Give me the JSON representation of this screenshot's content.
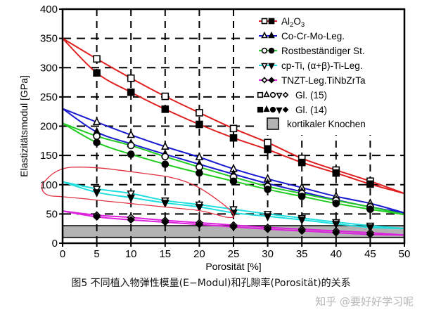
{
  "chart_data": {
    "type": "line",
    "xlabel": "Porosität [%]",
    "ylabel": "Elastizitätsmodul [GPa]",
    "xlim": [
      0,
      50
    ],
    "ylim": [
      0,
      400
    ],
    "xticks": [
      0,
      5,
      10,
      15,
      20,
      25,
      30,
      35,
      40,
      45,
      50
    ],
    "yticks": [
      0,
      50,
      100,
      150,
      200,
      250,
      300,
      350,
      400
    ],
    "grid": "dashed",
    "legend_position": "top-right",
    "x_markers": [
      5,
      10,
      15,
      20,
      25,
      30,
      35,
      40,
      45
    ],
    "series": [
      {
        "name": "Al2O3",
        "color": "#e02020",
        "E0": 350,
        "E50": 85,
        "gl15": [
          315,
          282,
          251,
          223,
          196,
          172,
          145,
          125,
          106
        ],
        "gl14": [
          291,
          258,
          229,
          203,
          180,
          160,
          138,
          120,
          101
        ],
        "symbol": "square"
      },
      {
        "name": "Co-Cr-Mo-Leg.",
        "color": "#1a1ad0",
        "E0": 230,
        "E50": 52,
        "gl15": [
          207,
          185,
          165,
          147,
          127,
          110,
          95,
          80,
          68
        ],
        "gl14": [
          190,
          170,
          152,
          135,
          118,
          102,
          88,
          74,
          62
        ],
        "symbol": "triangle-up"
      },
      {
        "name": "Rostbeständiger St.",
        "color": "#22cc22",
        "E0": 205,
        "E50": 49,
        "gl15": [
          183,
          167,
          148,
          130,
          113,
          97,
          85,
          73,
          62
        ],
        "gl14": [
          172,
          152,
          135,
          120,
          106,
          92,
          80,
          68,
          58
        ],
        "symbol": "circle"
      },
      {
        "name": "cp-Ti, (α+β)-Ti-Leg.",
        "color": "#22dddd",
        "E0": 105,
        "E50": 25,
        "gl15": [
          93,
          85,
          73,
          66,
          58,
          50,
          43,
          36,
          30
        ],
        "gl14": [
          87,
          78,
          69,
          62,
          52,
          46,
          40,
          33,
          27
        ],
        "symbol": "triangle-down"
      },
      {
        "name": "TNZT-Leg.TiNbZrTa",
        "color": "#dd22dd",
        "E0": 55,
        "E50": 14,
        "gl15": [
          48,
          44,
          39,
          35,
          31,
          27,
          24,
          21,
          18
        ],
        "gl14": [
          45,
          40,
          36,
          32,
          28,
          24,
          21,
          18,
          15
        ],
        "symbol": "diamond"
      }
    ],
    "legend": {
      "al2o3": [
        "Al",
        "2",
        "O",
        "3"
      ],
      "gl15": "Gl. (15)",
      "gl14": "Gl. (14)",
      "bone": "kortikaler Knochen"
    },
    "bone_band": {
      "range": [
        10,
        30
      ],
      "color": "#b3b3b3"
    }
  },
  "caption": "图5 不同植入物弹性模量(E−Modul)和孔隙率(Porosität)的关系",
  "watermark": "知乎 @要好好学习呢"
}
